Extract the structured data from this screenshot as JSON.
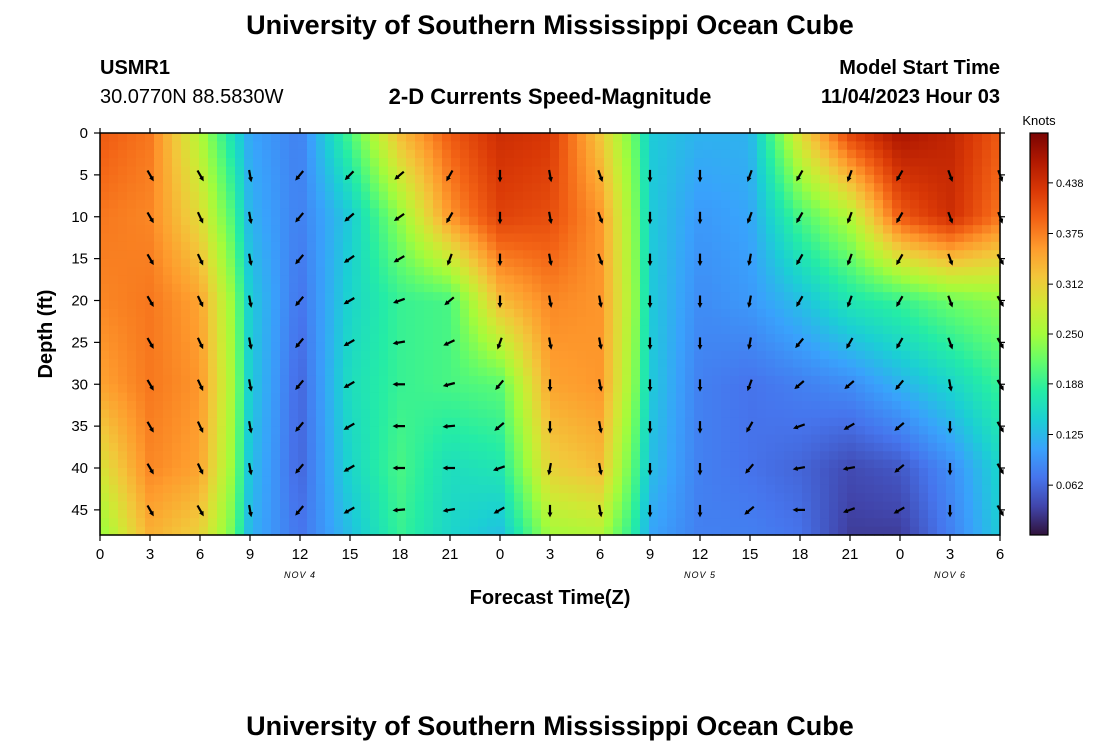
{
  "page": {
    "top_title": "University of Southern Mississippi Ocean Cube",
    "bottom_title": "University of Southern Mississippi Ocean Cube",
    "station_id": "USMR1",
    "station_coords": "30.0770N  88.5830W",
    "chart_title": "2-D Currents Speed-Magnitude",
    "model_start_label": "Model Start Time",
    "model_start_value": "11/04/2023 Hour 03"
  },
  "chart_data": {
    "type": "heatmap",
    "title": "2-D Currents Speed-Magnitude",
    "xlabel": "Forecast Time(Z)",
    "ylabel": "Depth (ft)",
    "x_tick_labels": [
      "0",
      "3",
      "6",
      "9",
      "12",
      "15",
      "18",
      "21",
      "0",
      "3",
      "6",
      "9",
      "12",
      "15",
      "18",
      "21",
      "0",
      "3",
      "6"
    ],
    "day_labels": [
      {
        "label": "NOV 4",
        "at_tick": 4
      },
      {
        "label": "NOV 5",
        "at_tick": 12
      },
      {
        "label": "NOV 6",
        "at_tick": 17
      }
    ],
    "y_ticks": [
      0,
      5,
      10,
      15,
      20,
      25,
      30,
      35,
      40,
      45
    ],
    "y_range": [
      0,
      48
    ],
    "x_range_hours": [
      0,
      54
    ],
    "colorbar": {
      "label": "Knots",
      "range": [
        0.0,
        0.5
      ],
      "tick_values": [
        0.062,
        0.125,
        0.188,
        0.25,
        0.312,
        0.375,
        0.438
      ],
      "tick_labels": [
        "0.062",
        "0.125",
        "0.188",
        "0.250",
        "0.312",
        "0.375",
        "0.438"
      ],
      "colors": [
        "#30123b",
        "#4145ab",
        "#4675ed",
        "#39a2fc",
        "#1bcfd4",
        "#24eca6",
        "#61fc6c",
        "#a4fc3b",
        "#d1e834",
        "#f3c63a",
        "#fe9b2d",
        "#f36315",
        "#d93806",
        "#b11901",
        "#7a0403"
      ]
    },
    "speed_grid": {
      "x_hours": [
        0,
        3,
        6,
        8,
        9,
        12,
        15,
        18,
        21,
        24,
        27,
        30,
        32,
        33,
        36,
        39,
        42,
        45,
        48,
        51,
        54
      ],
      "depths": [
        0,
        10,
        20,
        30,
        40,
        48
      ],
      "values": [
        [
          0.4,
          0.38,
          0.26,
          0.16,
          0.11,
          0.08,
          0.2,
          0.33,
          0.4,
          0.44,
          0.43,
          0.32,
          0.22,
          0.14,
          0.12,
          0.12,
          0.3,
          0.42,
          0.47,
          0.45,
          0.4
        ],
        [
          0.38,
          0.37,
          0.3,
          0.2,
          0.12,
          0.08,
          0.14,
          0.24,
          0.36,
          0.42,
          0.41,
          0.36,
          0.24,
          0.14,
          0.1,
          0.11,
          0.2,
          0.26,
          0.4,
          0.44,
          0.38
        ],
        [
          0.37,
          0.38,
          0.35,
          0.24,
          0.14,
          0.07,
          0.15,
          0.19,
          0.2,
          0.33,
          0.37,
          0.36,
          0.25,
          0.14,
          0.09,
          0.1,
          0.13,
          0.17,
          0.19,
          0.22,
          0.24
        ],
        [
          0.35,
          0.38,
          0.36,
          0.25,
          0.14,
          0.06,
          0.16,
          0.19,
          0.2,
          0.21,
          0.35,
          0.36,
          0.24,
          0.14,
          0.08,
          0.07,
          0.08,
          0.09,
          0.12,
          0.15,
          0.19
        ],
        [
          0.29,
          0.37,
          0.35,
          0.24,
          0.13,
          0.06,
          0.15,
          0.2,
          0.16,
          0.17,
          0.31,
          0.33,
          0.21,
          0.13,
          0.08,
          0.07,
          0.06,
          0.04,
          0.05,
          0.09,
          0.15
        ],
        [
          0.24,
          0.34,
          0.31,
          0.22,
          0.12,
          0.07,
          0.13,
          0.19,
          0.15,
          0.13,
          0.25,
          0.26,
          0.18,
          0.11,
          0.08,
          0.08,
          0.07,
          0.03,
          0.03,
          0.08,
          0.14
        ]
      ]
    },
    "vector_field": {
      "x_hours": [
        3,
        6,
        9,
        12,
        15,
        18,
        21,
        24,
        27,
        30,
        33,
        36,
        39,
        42,
        45,
        48,
        51,
        54
      ],
      "depths": [
        5,
        10,
        15,
        20,
        25,
        30,
        35,
        40,
        45
      ],
      "directions_deg": [
        [
          300,
          300,
          280,
          230,
          225,
          220,
          240,
          270,
          280,
          290,
          270,
          270,
          250,
          240,
          250,
          240,
          290,
          290
        ],
        [
          300,
          295,
          280,
          230,
          220,
          215,
          240,
          270,
          280,
          290,
          270,
          270,
          250,
          240,
          250,
          240,
          290,
          290
        ],
        [
          300,
          295,
          280,
          230,
          215,
          210,
          250,
          270,
          280,
          290,
          270,
          270,
          260,
          240,
          250,
          240,
          290,
          300
        ],
        [
          300,
          295,
          280,
          230,
          210,
          200,
          220,
          270,
          280,
          280,
          270,
          270,
          260,
          240,
          250,
          240,
          290,
          300
        ],
        [
          300,
          295,
          280,
          230,
          210,
          190,
          205,
          250,
          280,
          280,
          270,
          270,
          260,
          230,
          240,
          240,
          290,
          300
        ],
        [
          300,
          295,
          280,
          230,
          210,
          180,
          195,
          230,
          270,
          280,
          270,
          270,
          250,
          220,
          220,
          230,
          280,
          300
        ],
        [
          300,
          295,
          280,
          230,
          210,
          180,
          185,
          220,
          270,
          280,
          270,
          270,
          240,
          200,
          210,
          220,
          270,
          300
        ],
        [
          300,
          295,
          280,
          230,
          210,
          180,
          180,
          200,
          260,
          280,
          270,
          270,
          230,
          190,
          190,
          220,
          270,
          300
        ],
        [
          300,
          300,
          280,
          230,
          210,
          185,
          190,
          210,
          270,
          280,
          270,
          270,
          220,
          180,
          200,
          210,
          270,
          300
        ]
      ]
    }
  }
}
